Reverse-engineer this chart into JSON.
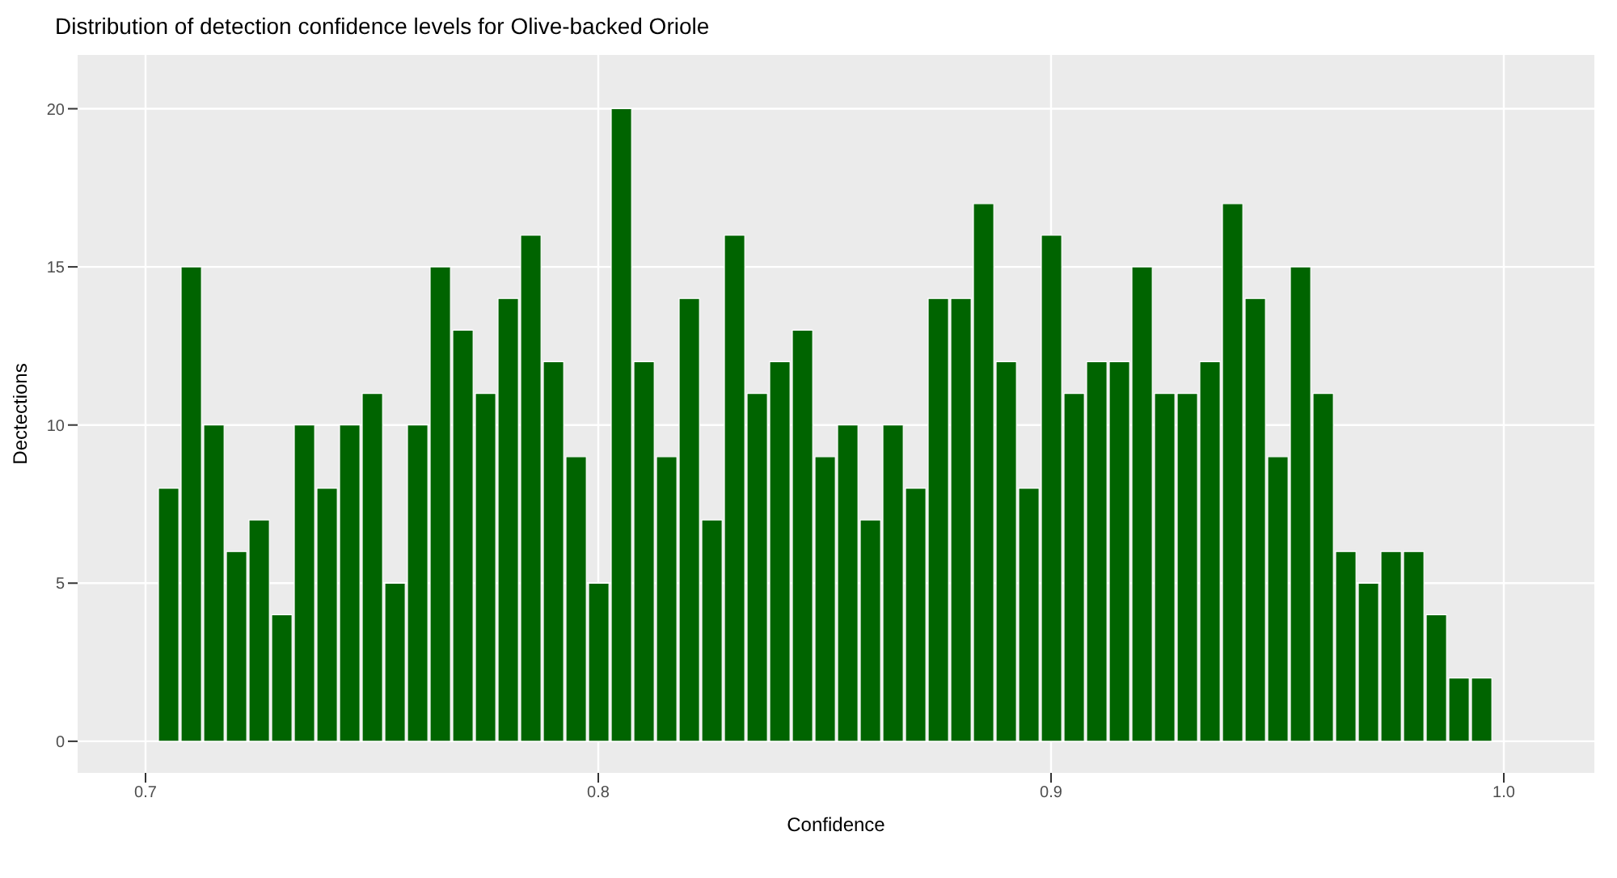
{
  "chart_data": {
    "type": "histogram",
    "title": "Distribution of detection confidence levels for Olive-backed Oriole",
    "xlabel": "Confidence",
    "ylabel": "Dectections",
    "bins": [
      0.7025,
      0.7075,
      0.7125,
      0.7175,
      0.7225,
      0.7275,
      0.7325,
      0.7375,
      0.7425,
      0.7475,
      0.7525,
      0.7575,
      0.7625,
      0.7675,
      0.7725,
      0.7775,
      0.7825,
      0.7875,
      0.7925,
      0.7975,
      0.8025,
      0.8075,
      0.8125,
      0.8175,
      0.8225,
      0.8275,
      0.8325,
      0.8375,
      0.8425,
      0.8475,
      0.8525,
      0.8575,
      0.8625,
      0.8675,
      0.8725,
      0.8775,
      0.8825,
      0.8875,
      0.8925,
      0.8975,
      0.9025,
      0.9075,
      0.9125,
      0.9175,
      0.9225,
      0.9275,
      0.9325,
      0.9375,
      0.9425,
      0.9475,
      0.9525,
      0.9575,
      0.9625,
      0.9675,
      0.9725,
      0.9775,
      0.9825,
      0.9875,
      0.9925,
      0.9975
    ],
    "values": [
      8,
      15,
      10,
      6,
      7,
      4,
      10,
      8,
      10,
      11,
      5,
      10,
      15,
      13,
      11,
      14,
      16,
      12,
      9,
      5,
      20,
      12,
      9,
      14,
      7,
      16,
      11,
      12,
      13,
      9,
      10,
      7,
      10,
      8,
      14,
      14,
      17,
      12,
      8,
      16,
      11,
      12,
      12,
      15,
      11,
      11,
      12,
      17,
      14,
      9,
      15,
      11,
      6,
      5,
      6,
      6,
      4,
      2,
      2
    ],
    "color": "#006400",
    "xlim": [
      0.685,
      1.02
    ],
    "xticks": [
      0.7,
      0.8,
      0.9,
      {
        "value": 1,
        "label": "1.0"
      }
    ],
    "ylim": [
      -1,
      21.7
    ],
    "yticks": [
      0,
      5,
      10,
      15,
      20
    ],
    "grid": true
  }
}
